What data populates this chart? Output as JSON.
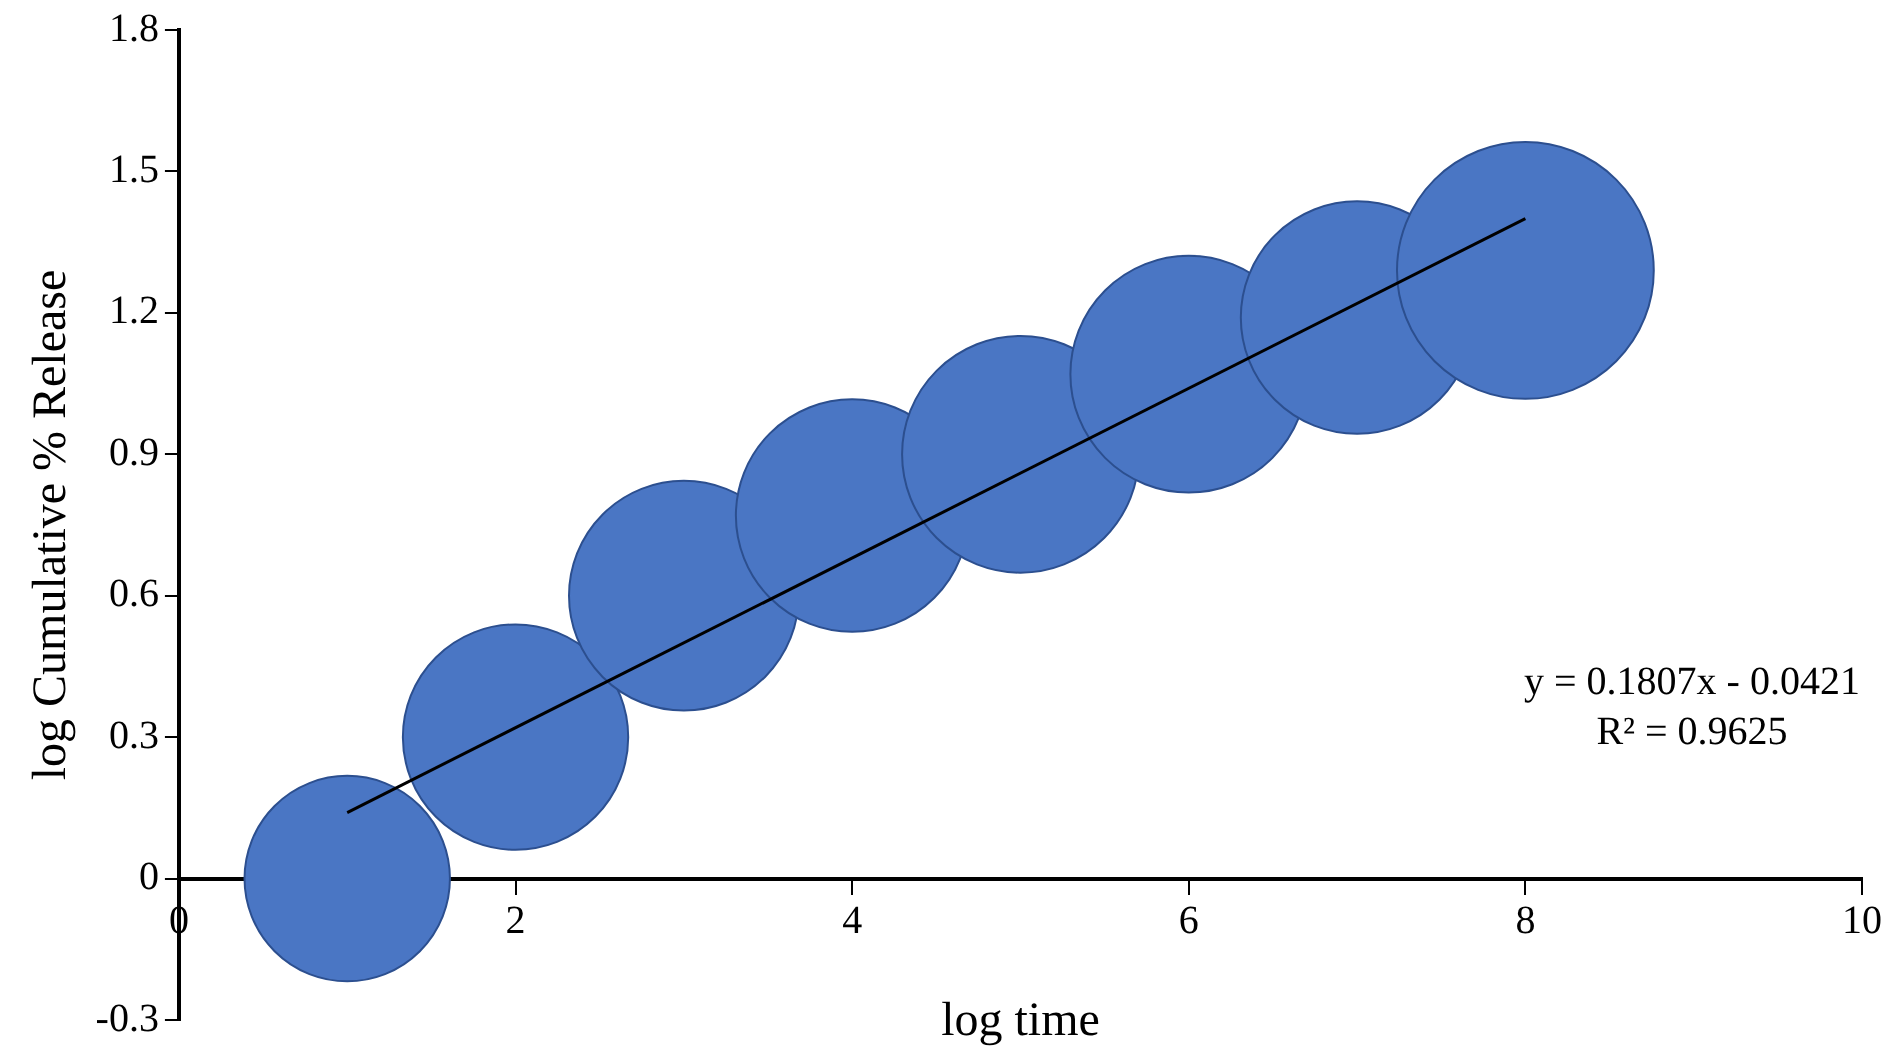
{
  "chart_data": {
    "type": "bubble",
    "xlabel": "log time",
    "ylabel": "log Cumulative % Release",
    "xlim": [
      0,
      10
    ],
    "xticks": [
      0,
      2,
      4,
      6,
      8,
      10
    ],
    "ylim": [
      -0.3,
      1.8
    ],
    "yticks": [
      -0.3,
      0,
      0.3,
      0.6,
      0.9,
      1.2,
      1.5,
      1.8
    ],
    "grid": false,
    "legend": false,
    "series": [
      {
        "type": "bubble",
        "color": "#4a76c4",
        "x": [
          1,
          2,
          3,
          4,
          5,
          6,
          7,
          8
        ],
        "values": [
          0,
          0.3,
          0.6,
          0.77,
          0.9,
          1.07,
          1.19,
          1.29
        ],
        "sizes": [
          0.64,
          0.77,
          0.8,
          0.82,
          0.85,
          0.85,
          0.82,
          1
        ]
      },
      {
        "type": "line",
        "color": "#000000",
        "x": [
          1,
          8
        ],
        "values": [
          0.14,
          1.4
        ]
      }
    ],
    "annotations": [
      "y = 0.1807x - 0.0421",
      "R² = 0.9625"
    ]
  }
}
